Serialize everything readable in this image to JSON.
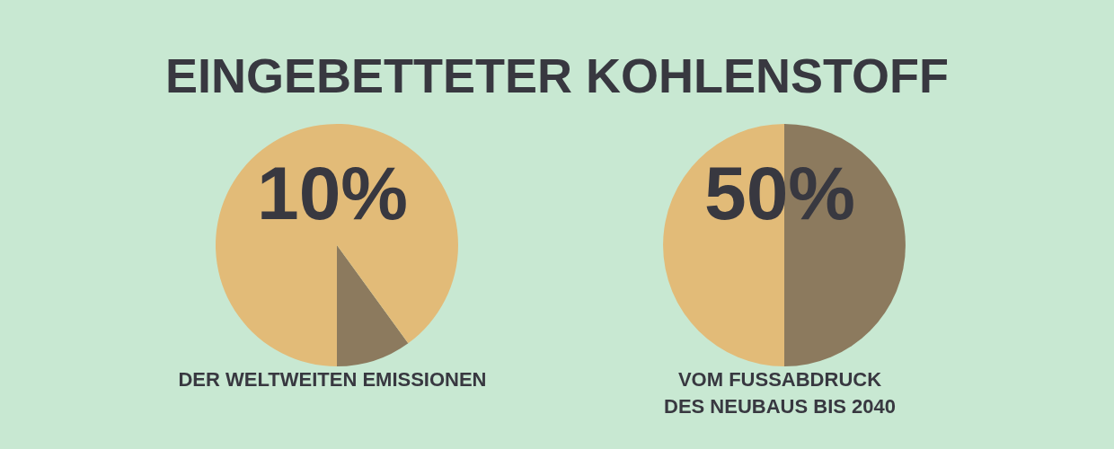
{
  "chart_data": [
    {
      "type": "pie",
      "title": "EINGEBETTETER KOHLENSTOFF",
      "categories": [
        null,
        null
      ],
      "values": [
        10,
        90
      ],
      "colors": [
        "#8c7a5e",
        "#e2bb78"
      ],
      "annotations": [
        "10%",
        "DER WELTWEITEN EMISSIONEN"
      ]
    },
    {
      "type": "pie",
      "categories": [
        null,
        null
      ],
      "values": [
        50,
        50
      ],
      "colors": [
        "#8c7a5e",
        "#e2bb78"
      ],
      "annotations": [
        "50%",
        "VOM FUSSABDRUCK\nDES NEUBAUS BIS 2040"
      ]
    }
  ]
}
